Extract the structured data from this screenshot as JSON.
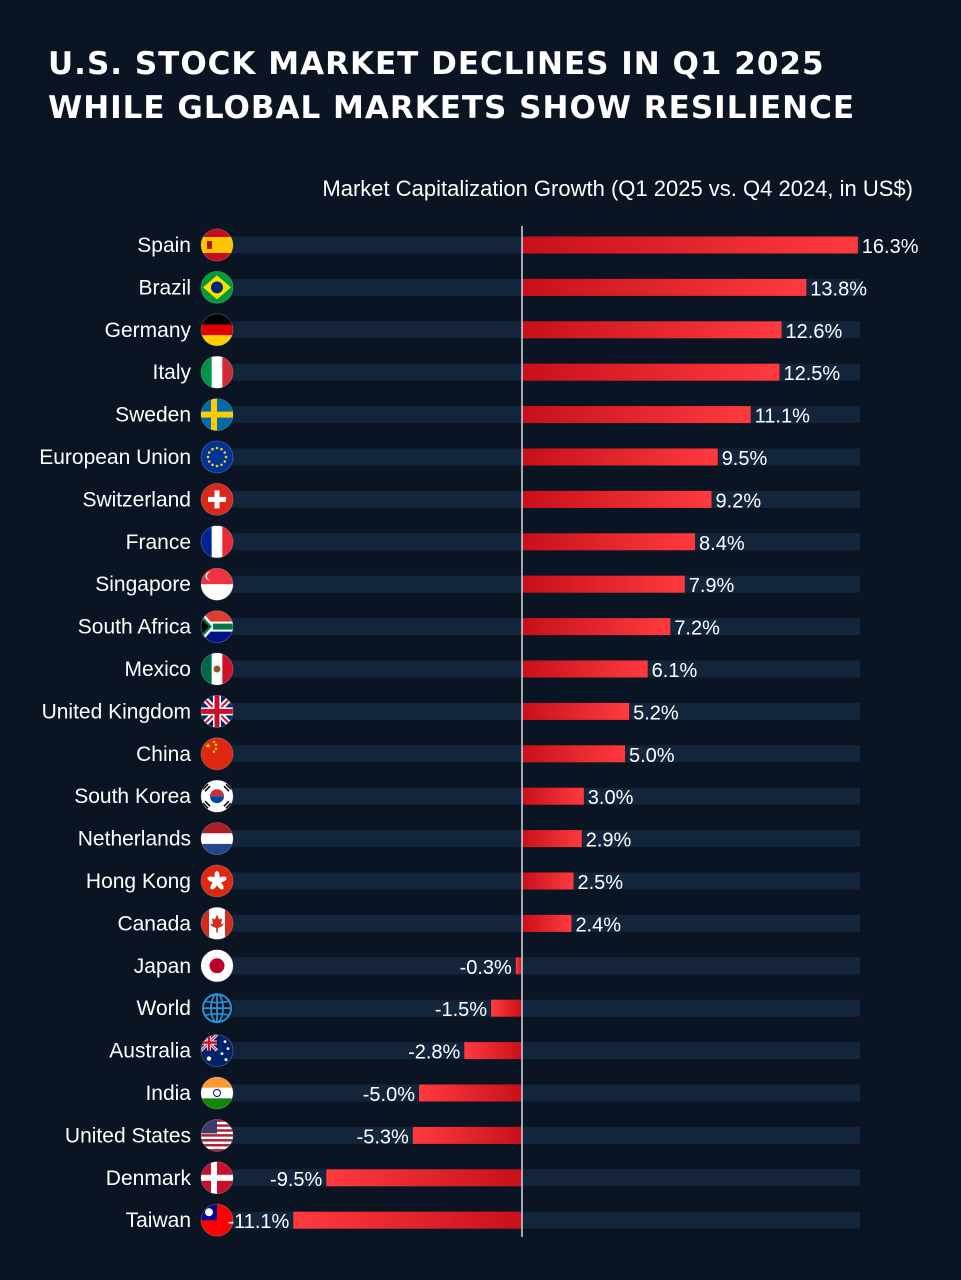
{
  "header": {
    "title_line1": "U.S. STOCK MARKET DECLINES IN Q1 2025",
    "title_line2": "WHILE GLOBAL MARKETS SHOW RESILIENCE",
    "subtitle": "Market Capitalization Growth (Q1 2025 vs. Q4 2024, in US$)"
  },
  "colors": {
    "background": "#0a1422",
    "track": "#13253b",
    "bar_dark": "#c8101a",
    "bar_light": "#ff3a3f",
    "axis": "#cfd6df",
    "text": "#ffffff"
  },
  "chart_data": {
    "type": "bar",
    "orientation": "horizontal",
    "title": "U.S. STOCK MARKET DECLINES IN Q1 2025 WHILE GLOBAL MARKETS SHOW RESILIENCE",
    "subtitle": "Market Capitalization Growth (Q1 2025 vs. Q4 2024, in US$)",
    "unit": "%",
    "categories": [
      "Spain",
      "Brazil",
      "Germany",
      "Italy",
      "Sweden",
      "European Union",
      "Switzerland",
      "France",
      "Singapore",
      "South Africa",
      "Mexico",
      "United Kingdom",
      "China",
      "South Korea",
      "Netherlands",
      "Hong Kong",
      "Canada",
      "Japan",
      "World",
      "Australia",
      "India",
      "United States",
      "Denmark",
      "Taiwan"
    ],
    "values": [
      16.3,
      13.8,
      12.6,
      12.5,
      11.1,
      9.5,
      9.2,
      8.4,
      7.9,
      7.2,
      6.1,
      5.2,
      5.0,
      3.0,
      2.9,
      2.5,
      2.4,
      -0.3,
      -1.5,
      -2.8,
      -5.0,
      -5.3,
      -9.5,
      -11.1
    ],
    "value_labels": [
      "16.3%",
      "13.8%",
      "12.6%",
      "12.5%",
      "11.1%",
      "9.5%",
      "9.2%",
      "8.4%",
      "7.9%",
      "7.2%",
      "6.1%",
      "5.2%",
      "5.0%",
      "3.0%",
      "2.9%",
      "2.5%",
      "2.4%",
      "-0.3%",
      "-1.5%",
      "-2.8%",
      "-5.0%",
      "-5.3%",
      "-9.5%",
      "-11.1%"
    ],
    "icons": [
      "flag-spain-icon",
      "flag-brazil-icon",
      "flag-germany-icon",
      "flag-italy-icon",
      "flag-sweden-icon",
      "flag-eu-icon",
      "flag-switzerland-icon",
      "flag-france-icon",
      "flag-singapore-icon",
      "flag-south-africa-icon",
      "flag-mexico-icon",
      "flag-uk-icon",
      "flag-china-icon",
      "flag-south-korea-icon",
      "flag-netherlands-icon",
      "flag-hong-kong-icon",
      "flag-canada-icon",
      "flag-japan-icon",
      "globe-icon",
      "flag-australia-icon",
      "flag-india-icon",
      "flag-usa-icon",
      "flag-denmark-icon",
      "flag-taiwan-icon"
    ],
    "xlim": [
      -11.1,
      16.3
    ],
    "grid": false,
    "legend": "none"
  }
}
